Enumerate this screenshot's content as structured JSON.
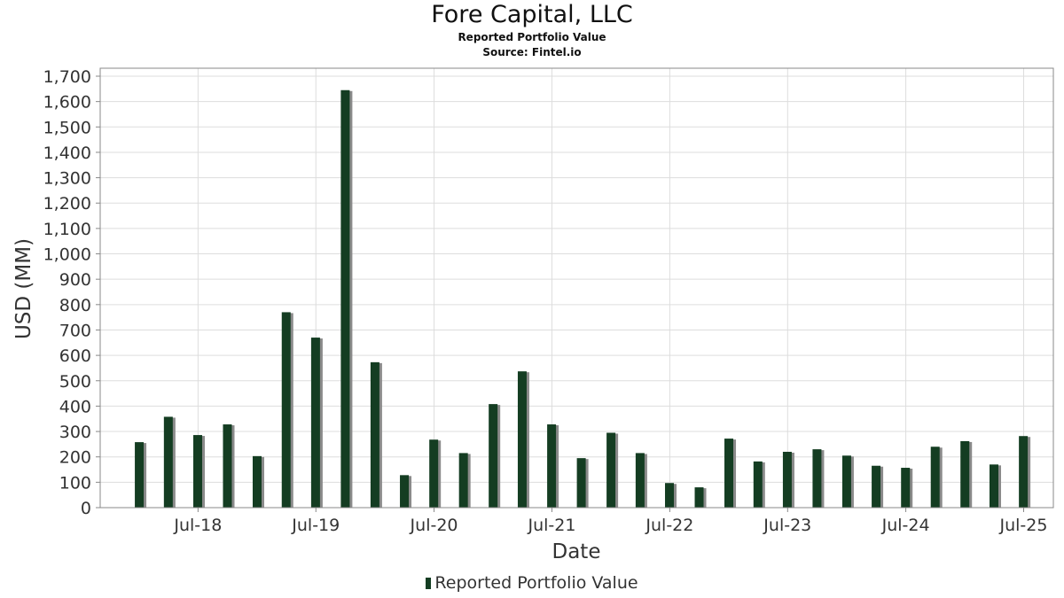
{
  "chart_data": {
    "type": "bar",
    "title": "Fore Capital, LLC",
    "subtitles": [
      "Reported Portfolio Value",
      "Source: Fintel.io"
    ],
    "xlabel": "Date",
    "ylabel": "USD (MM)",
    "ylim": [
      0,
      1700
    ],
    "yticks": [
      0,
      100,
      200,
      300,
      400,
      500,
      600,
      700,
      800,
      900,
      1000,
      1100,
      1200,
      1300,
      1400,
      1500,
      1600,
      1700
    ],
    "ytick_labels": [
      "0",
      "100",
      "200",
      "300",
      "400",
      "500",
      "600",
      "700",
      "800",
      "900",
      "1,000",
      "1,100",
      "1,200",
      "1,300",
      "1,400",
      "1,500",
      "1,600",
      "1,700"
    ],
    "xlim": [
      "2017-09-01",
      "2025-10-01"
    ],
    "xticks": [
      {
        "date": "2018-07-01",
        "label": "Jul-18"
      },
      {
        "date": "2019-07-01",
        "label": "Jul-19"
      },
      {
        "date": "2020-07-01",
        "label": "Jul-20"
      },
      {
        "date": "2021-07-01",
        "label": "Jul-21"
      },
      {
        "date": "2022-07-01",
        "label": "Jul-22"
      },
      {
        "date": "2023-07-01",
        "label": "Jul-23"
      },
      {
        "date": "2024-07-01",
        "label": "Jul-24"
      },
      {
        "date": "2025-07-01",
        "label": "Jul-25"
      }
    ],
    "grid": true,
    "legend_position": "bottom",
    "colors": {
      "bar": "#143d22",
      "shadow": "#8a8a8a",
      "grid": "#dddddd",
      "axis": "#888888"
    },
    "series": [
      {
        "name": "Reported Portfolio Value",
        "points": [
          {
            "x": "2017-12-31",
            "y": 258
          },
          {
            "x": "2018-03-31",
            "y": 358
          },
          {
            "x": "2018-06-30",
            "y": 286
          },
          {
            "x": "2018-09-30",
            "y": 328
          },
          {
            "x": "2018-12-31",
            "y": 203
          },
          {
            "x": "2019-03-31",
            "y": 770
          },
          {
            "x": "2019-06-30",
            "y": 670
          },
          {
            "x": "2019-09-30",
            "y": 1645
          },
          {
            "x": "2019-12-31",
            "y": 573
          },
          {
            "x": "2020-03-31",
            "y": 128
          },
          {
            "x": "2020-06-30",
            "y": 268
          },
          {
            "x": "2020-09-30",
            "y": 215
          },
          {
            "x": "2020-12-31",
            "y": 408
          },
          {
            "x": "2021-03-31",
            "y": 537
          },
          {
            "x": "2021-06-30",
            "y": 328
          },
          {
            "x": "2021-09-30",
            "y": 195
          },
          {
            "x": "2021-12-31",
            "y": 295
          },
          {
            "x": "2022-03-31",
            "y": 215
          },
          {
            "x": "2022-06-30",
            "y": 97
          },
          {
            "x": "2022-09-30",
            "y": 80
          },
          {
            "x": "2022-12-31",
            "y": 272
          },
          {
            "x": "2023-03-31",
            "y": 182
          },
          {
            "x": "2023-06-30",
            "y": 220
          },
          {
            "x": "2023-09-30",
            "y": 230
          },
          {
            "x": "2023-12-31",
            "y": 205
          },
          {
            "x": "2024-03-31",
            "y": 165
          },
          {
            "x": "2024-06-30",
            "y": 157
          },
          {
            "x": "2024-09-30",
            "y": 240
          },
          {
            "x": "2024-12-31",
            "y": 262
          },
          {
            "x": "2025-03-31",
            "y": 170
          },
          {
            "x": "2025-06-30",
            "y": 282
          }
        ]
      }
    ]
  }
}
